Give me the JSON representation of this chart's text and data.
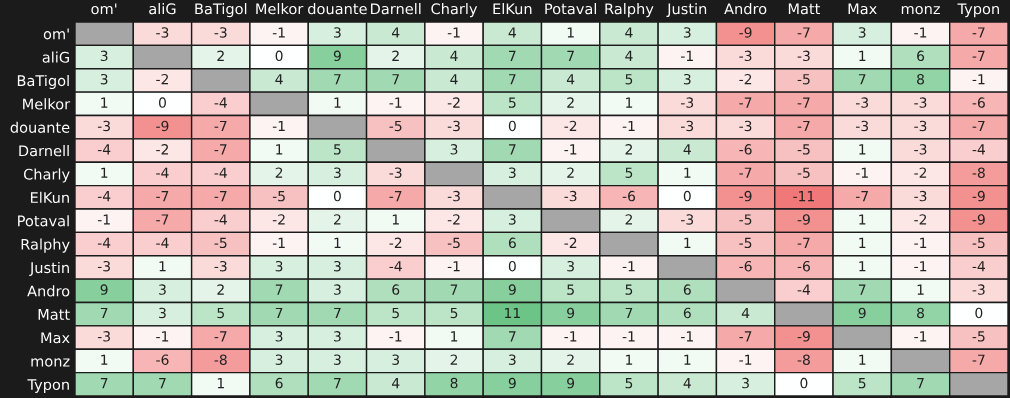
{
  "chart_data": {
    "type": "heatmap",
    "categories": [
      "om'",
      "aliG",
      "BaTigol",
      "Melkor",
      "douante",
      "Darnell",
      "Charly",
      "ElKun",
      "Potaval",
      "Ralphy",
      "Justin",
      "Andro",
      "Matt",
      "Max",
      "monz",
      "Typon"
    ],
    "y_categories": [
      "om'",
      "aliG",
      "BaTigol",
      "Melkor",
      "douante",
      "Darnell",
      "Charly",
      "ElKun",
      "Potaval",
      "Ralphy",
      "Justin",
      "Andro",
      "Matt",
      "Max",
      "monz",
      "Typon"
    ],
    "cells": [
      [
        null,
        -3,
        -3,
        -1,
        3,
        4,
        -1,
        4,
        1,
        4,
        3,
        -9,
        -7,
        3,
        -1,
        -7
      ],
      [
        3,
        null,
        2,
        0,
        9,
        2,
        4,
        7,
        7,
        4,
        -1,
        -3,
        -3,
        1,
        6,
        -7
      ],
      [
        3,
        -2,
        null,
        4,
        7,
        7,
        4,
        7,
        4,
        5,
        3,
        -2,
        -5,
        7,
        8,
        -1
      ],
      [
        1,
        0,
        -4,
        null,
        1,
        -1,
        -2,
        5,
        2,
        1,
        -3,
        -7,
        -7,
        -3,
        -3,
        -6
      ],
      [
        -3,
        -9,
        -7,
        -1,
        null,
        -5,
        -3,
        0,
        -2,
        -1,
        -3,
        -3,
        -7,
        -3,
        -3,
        -7
      ],
      [
        -4,
        -2,
        -7,
        1,
        5,
        null,
        3,
        7,
        -1,
        2,
        4,
        -6,
        -5,
        1,
        -3,
        -4
      ],
      [
        1,
        -4,
        -4,
        2,
        3,
        -3,
        null,
        3,
        2,
        5,
        1,
        -7,
        -5,
        -1,
        -2,
        -8
      ],
      [
        -4,
        -7,
        -7,
        -5,
        0,
        -7,
        -3,
        null,
        -3,
        -6,
        0,
        -9,
        -11,
        -7,
        -3,
        -9
      ],
      [
        -1,
        -7,
        -4,
        -2,
        2,
        1,
        -2,
        3,
        null,
        2,
        -3,
        -5,
        -9,
        1,
        -2,
        -9
      ],
      [
        -4,
        -4,
        -5,
        -1,
        1,
        -2,
        -5,
        6,
        -2,
        null,
        1,
        -5,
        -7,
        1,
        -1,
        -5
      ],
      [
        -3,
        1,
        -3,
        3,
        3,
        -4,
        -1,
        0,
        3,
        -1,
        null,
        -6,
        -6,
        1,
        -1,
        -4
      ],
      [
        9,
        3,
        2,
        7,
        3,
        6,
        7,
        9,
        5,
        5,
        6,
        null,
        -4,
        7,
        1,
        -3
      ],
      [
        7,
        3,
        5,
        7,
        7,
        5,
        5,
        11,
        9,
        7,
        6,
        4,
        null,
        9,
        8,
        0
      ],
      [
        -3,
        -1,
        -7,
        3,
        3,
        -1,
        1,
        7,
        -1,
        -1,
        -1,
        -7,
        -9,
        null,
        -1,
        -5
      ],
      [
        1,
        -6,
        -8,
        3,
        3,
        3,
        2,
        3,
        2,
        1,
        1,
        -1,
        -8,
        1,
        null,
        -7
      ],
      [
        7,
        7,
        1,
        6,
        7,
        4,
        8,
        9,
        9,
        5,
        4,
        3,
        0,
        5,
        7,
        null
      ]
    ],
    "data_labels": true
  }
}
